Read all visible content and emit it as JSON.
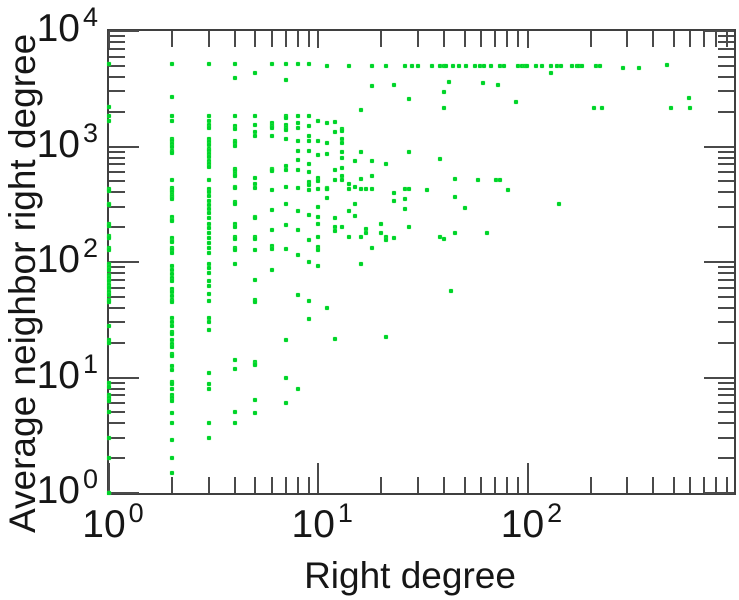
{
  "chart_data": {
    "type": "scatter",
    "title": "",
    "xlabel": "Right degree",
    "ylabel": "Average neighbor right degree",
    "x_scale": "log",
    "y_scale": "log",
    "xlim": [
      1,
      970
    ],
    "ylim": [
      1,
      10000
    ],
    "grid": false,
    "legend": null,
    "marker": {
      "shape": "square",
      "size": 4,
      "color": "#00d42a",
      "halo_color": "#66ff66"
    },
    "axis_color": "#3f3f3f",
    "text_color": "#161616",
    "x_tick_labels": [
      {
        "value": 1,
        "mantissa": "10",
        "exponent": "0"
      },
      {
        "value": 10,
        "mantissa": "10",
        "exponent": "1"
      },
      {
        "value": 100,
        "mantissa": "10",
        "exponent": "2"
      }
    ],
    "y_tick_labels": [
      {
        "value": 1,
        "mantissa": "10",
        "exponent": "0"
      },
      {
        "value": 10,
        "mantissa": "10",
        "exponent": "1"
      },
      {
        "value": 100,
        "mantissa": "10",
        "exponent": "2"
      },
      {
        "value": 1000,
        "mantissa": "10",
        "exponent": "3"
      },
      {
        "value": 10000,
        "mantissa": "10",
        "exponent": "4"
      }
    ],
    "points": [
      [
        1,
        5200
      ],
      [
        1,
        2200
      ],
      [
        1,
        1850
      ],
      [
        1,
        1670
      ],
      [
        1,
        430
      ],
      [
        1,
        415
      ],
      [
        1,
        320
      ],
      [
        1,
        310
      ],
      [
        1,
        215
      ],
      [
        1,
        205
      ],
      [
        1,
        167
      ],
      [
        1,
        160
      ],
      [
        1,
        132
      ],
      [
        1,
        127
      ],
      [
        1,
        97
      ],
      [
        1,
        91
      ],
      [
        1,
        85
      ],
      [
        1,
        77
      ],
      [
        1,
        73
      ],
      [
        1,
        68
      ],
      [
        1,
        63
      ],
      [
        1,
        59
      ],
      [
        1,
        55
      ],
      [
        1,
        52
      ],
      [
        1,
        47
      ],
      [
        1,
        45
      ],
      [
        1,
        28
      ],
      [
        1,
        21
      ],
      [
        1,
        20
      ],
      [
        1,
        8.9
      ],
      [
        1,
        8.3
      ],
      [
        1,
        7.1
      ],
      [
        1,
        6.7
      ],
      [
        1,
        6.2
      ],
      [
        1,
        5
      ],
      [
        1,
        3
      ],
      [
        1,
        2
      ],
      [
        1,
        1
      ],
      [
        2,
        5200
      ],
      [
        2,
        2700
      ],
      [
        2,
        1830
      ],
      [
        2,
        1670
      ],
      [
        2,
        1170
      ],
      [
        2,
        1120
      ],
      [
        2,
        1060
      ],
      [
        2,
        1000
      ],
      [
        2,
        920
      ],
      [
        2,
        870
      ],
      [
        2,
        510
      ],
      [
        2,
        440
      ],
      [
        2,
        420
      ],
      [
        2,
        400
      ],
      [
        2,
        380
      ],
      [
        2,
        365
      ],
      [
        2,
        350
      ],
      [
        2,
        245
      ],
      [
        2,
        230
      ],
      [
        2,
        225
      ],
      [
        2,
        160
      ],
      [
        2,
        152
      ],
      [
        2,
        148
      ],
      [
        2,
        132
      ],
      [
        2,
        127
      ],
      [
        2,
        120
      ],
      [
        2,
        92
      ],
      [
        2,
        85
      ],
      [
        2,
        79
      ],
      [
        2,
        73
      ],
      [
        2,
        68
      ],
      [
        2,
        58
      ],
      [
        2,
        55
      ],
      [
        2,
        51
      ],
      [
        2,
        47
      ],
      [
        2,
        45
      ],
      [
        2,
        33
      ],
      [
        2,
        30
      ],
      [
        2,
        28
      ],
      [
        2,
        25
      ],
      [
        2,
        24
      ],
      [
        2,
        21
      ],
      [
        2,
        19.5
      ],
      [
        2,
        18.5
      ],
      [
        2,
        16
      ],
      [
        2,
        15.2
      ],
      [
        2,
        12.5
      ],
      [
        2,
        11.7
      ],
      [
        2,
        9.2
      ],
      [
        2,
        8.7
      ],
      [
        2,
        7.9
      ],
      [
        2,
        7.1
      ],
      [
        2,
        6.7
      ],
      [
        2,
        6.3
      ],
      [
        2,
        4.9
      ],
      [
        2,
        4
      ],
      [
        2,
        2.9
      ],
      [
        2,
        2
      ],
      [
        2,
        1.5
      ],
      [
        3,
        5200
      ],
      [
        3,
        1850
      ],
      [
        3,
        1670
      ],
      [
        3,
        1530
      ],
      [
        3,
        1460
      ],
      [
        3,
        1170
      ],
      [
        3,
        1090
      ],
      [
        3,
        1030
      ],
      [
        3,
        960
      ],
      [
        3,
        920
      ],
      [
        3,
        860
      ],
      [
        3,
        810
      ],
      [
        3,
        750
      ],
      [
        3,
        710
      ],
      [
        3,
        660
      ],
      [
        3,
        510
      ],
      [
        3,
        430
      ],
      [
        3,
        400
      ],
      [
        3,
        370
      ],
      [
        3,
        340
      ],
      [
        3,
        310
      ],
      [
        3,
        290
      ],
      [
        3,
        265
      ],
      [
        3,
        240
      ],
      [
        3,
        215
      ],
      [
        3,
        197
      ],
      [
        3,
        178
      ],
      [
        3,
        160
      ],
      [
        3,
        145
      ],
      [
        3,
        132
      ],
      [
        3,
        120
      ],
      [
        3,
        97
      ],
      [
        3,
        89
      ],
      [
        3,
        80
      ],
      [
        3,
        69
      ],
      [
        3,
        62
      ],
      [
        3,
        53
      ],
      [
        3,
        46
      ],
      [
        3,
        33
      ],
      [
        3,
        30
      ],
      [
        3,
        26
      ],
      [
        3,
        11
      ],
      [
        3,
        8.7
      ],
      [
        3,
        7.9
      ],
      [
        3,
        4
      ],
      [
        3,
        3
      ],
      [
        4,
        5200
      ],
      [
        4,
        3900
      ],
      [
        4,
        1850
      ],
      [
        4,
        1500
      ],
      [
        4,
        1430
      ],
      [
        4,
        1120
      ],
      [
        4,
        1070
      ],
      [
        4,
        1010
      ],
      [
        4,
        640
      ],
      [
        4,
        615
      ],
      [
        4,
        580
      ],
      [
        4,
        550
      ],
      [
        4,
        445
      ],
      [
        4,
        435
      ],
      [
        4,
        330
      ],
      [
        4,
        315
      ],
      [
        4,
        215
      ],
      [
        4,
        200
      ],
      [
        4,
        165
      ],
      [
        4,
        158
      ],
      [
        4,
        133
      ],
      [
        4,
        126
      ],
      [
        4,
        97
      ],
      [
        4,
        14.3
      ],
      [
        4,
        11.9
      ],
      [
        4,
        5
      ],
      [
        4,
        4
      ],
      [
        5,
        4300
      ],
      [
        5,
        1850
      ],
      [
        5,
        1550
      ],
      [
        5,
        1330
      ],
      [
        5,
        1240
      ],
      [
        5,
        530
      ],
      [
        5,
        470
      ],
      [
        5,
        435
      ],
      [
        5,
        245
      ],
      [
        5,
        240
      ],
      [
        5,
        165
      ],
      [
        5,
        158
      ],
      [
        5,
        126
      ],
      [
        5,
        70
      ],
      [
        5,
        47
      ],
      [
        5,
        45
      ],
      [
        5,
        13.7
      ],
      [
        5,
        13.2
      ],
      [
        5,
        12.8
      ],
      [
        5,
        6.4
      ],
      [
        5,
        4.9
      ],
      [
        6,
        5200
      ],
      [
        6,
        1600
      ],
      [
        6,
        1500
      ],
      [
        6,
        1460
      ],
      [
        6,
        1240
      ],
      [
        6,
        640
      ],
      [
        6,
        625
      ],
      [
        6,
        610
      ],
      [
        6,
        420
      ],
      [
        6,
        280
      ],
      [
        6,
        190
      ],
      [
        6,
        138
      ],
      [
        6,
        130
      ],
      [
        6,
        85
      ],
      [
        7,
        5200
      ],
      [
        7,
        3800
      ],
      [
        7,
        1850
      ],
      [
        7,
        1780
      ],
      [
        7,
        1550
      ],
      [
        7,
        1460
      ],
      [
        7,
        1380
      ],
      [
        7,
        1170
      ],
      [
        7,
        680
      ],
      [
        7,
        620
      ],
      [
        7,
        445
      ],
      [
        7,
        320
      ],
      [
        7,
        210
      ],
      [
        7,
        130
      ],
      [
        7,
        21
      ],
      [
        7,
        10
      ],
      [
        7,
        6
      ],
      [
        8,
        5200
      ],
      [
        8,
        1850
      ],
      [
        8,
        1600
      ],
      [
        8,
        1440
      ],
      [
        8,
        1120
      ],
      [
        8,
        920
      ],
      [
        8,
        760
      ],
      [
        8,
        620
      ],
      [
        8,
        435
      ],
      [
        8,
        275
      ],
      [
        8,
        190
      ],
      [
        8,
        115
      ],
      [
        8,
        52
      ],
      [
        8,
        7.9
      ],
      [
        9,
        5200
      ],
      [
        9,
        1850
      ],
      [
        9,
        1500
      ],
      [
        9,
        1240
      ],
      [
        9,
        1120
      ],
      [
        9,
        920
      ],
      [
        9,
        700
      ],
      [
        9,
        600
      ],
      [
        9,
        490
      ],
      [
        9,
        460
      ],
      [
        9,
        420
      ],
      [
        9,
        255
      ],
      [
        9,
        155
      ],
      [
        9,
        100
      ],
      [
        9,
        46
      ],
      [
        9,
        32
      ],
      [
        10,
        1670
      ],
      [
        10,
        1120
      ],
      [
        10,
        840
      ],
      [
        10,
        535
      ],
      [
        10,
        505
      ],
      [
        10,
        430
      ],
      [
        10,
        300
      ],
      [
        10,
        245
      ],
      [
        10,
        215
      ],
      [
        10,
        165
      ],
      [
        10,
        135
      ],
      [
        10,
        126
      ],
      [
        10,
        92
      ],
      [
        11,
        5000
      ],
      [
        11,
        1600
      ],
      [
        11,
        1080
      ],
      [
        11,
        855
      ],
      [
        11,
        440
      ],
      [
        11,
        430
      ],
      [
        11,
        425
      ],
      [
        11,
        360
      ],
      [
        11,
        40
      ],
      [
        12,
        1620
      ],
      [
        12,
        1330
      ],
      [
        12,
        620
      ],
      [
        12,
        510
      ],
      [
        12,
        240
      ],
      [
        12,
        200
      ],
      [
        12,
        186
      ],
      [
        12,
        21.7
      ],
      [
        13,
        1430
      ],
      [
        13,
        1350
      ],
      [
        13,
        1170
      ],
      [
        13,
        1080
      ],
      [
        13,
        900
      ],
      [
        13,
        790
      ],
      [
        13,
        645
      ],
      [
        13,
        560
      ],
      [
        13,
        510
      ],
      [
        13,
        200
      ],
      [
        14,
        5000
      ],
      [
        14,
        475
      ],
      [
        14,
        430
      ],
      [
        14,
        275
      ],
      [
        14,
        165
      ],
      [
        15,
        755
      ],
      [
        15,
        445
      ],
      [
        15,
        315
      ],
      [
        15,
        250
      ],
      [
        16,
        2050
      ],
      [
        16,
        900
      ],
      [
        16,
        520
      ],
      [
        16,
        430
      ],
      [
        16,
        165
      ],
      [
        16,
        97
      ],
      [
        17,
        430
      ],
      [
        17,
        195
      ],
      [
        17,
        180
      ],
      [
        18,
        5000
      ],
      [
        18,
        3350
      ],
      [
        18,
        755
      ],
      [
        18,
        555
      ],
      [
        18,
        430
      ],
      [
        18,
        133
      ],
      [
        20,
        215
      ],
      [
        20,
        180
      ],
      [
        21,
        5000
      ],
      [
        21,
        700
      ],
      [
        21,
        165
      ],
      [
        21,
        155
      ],
      [
        21,
        22.3
      ],
      [
        23,
        3400
      ],
      [
        23,
        395
      ],
      [
        23,
        340
      ],
      [
        23,
        162
      ],
      [
        26,
        5000
      ],
      [
        26,
        430
      ],
      [
        26,
        350
      ],
      [
        26,
        290
      ],
      [
        27,
        2600
      ],
      [
        27,
        900
      ],
      [
        27,
        430
      ],
      [
        27,
        200
      ],
      [
        28,
        5000
      ],
      [
        30,
        5000
      ],
      [
        33,
        420
      ],
      [
        35,
        5000
      ],
      [
        38,
        5000
      ],
      [
        38,
        780
      ],
      [
        38,
        165
      ],
      [
        40,
        5000
      ],
      [
        40,
        2950
      ],
      [
        40,
        2150
      ],
      [
        40,
        158
      ],
      [
        41,
        5000
      ],
      [
        42,
        3650
      ],
      [
        43,
        56
      ],
      [
        44,
        5000
      ],
      [
        45,
        520
      ],
      [
        45,
        365
      ],
      [
        45,
        180
      ],
      [
        47,
        5000
      ],
      [
        50,
        295
      ],
      [
        51,
        5000
      ],
      [
        56,
        5000
      ],
      [
        58,
        510
      ],
      [
        59,
        5000
      ],
      [
        61,
        3550
      ],
      [
        62,
        5000
      ],
      [
        64,
        180
      ],
      [
        67,
        5000
      ],
      [
        71,
        510
      ],
      [
        72,
        3400
      ],
      [
        74,
        5000
      ],
      [
        74,
        515
      ],
      [
        77,
        5000
      ],
      [
        81,
        420
      ],
      [
        88,
        2450
      ],
      [
        90,
        5000
      ],
      [
        94,
        5000
      ],
      [
        97,
        5000
      ],
      [
        99,
        5000
      ],
      [
        110,
        5000
      ],
      [
        117,
        5000
      ],
      [
        130,
        5000
      ],
      [
        130,
        4300
      ],
      [
        138,
        5000
      ],
      [
        142,
        316
      ],
      [
        144,
        5000
      ],
      [
        164,
        5000
      ],
      [
        172,
        5000
      ],
      [
        177,
        5000
      ],
      [
        183,
        5000
      ],
      [
        207,
        2170
      ],
      [
        213,
        5000
      ],
      [
        223,
        5000
      ],
      [
        228,
        2170
      ],
      [
        287,
        4800
      ],
      [
        340,
        4800
      ],
      [
        465,
        5100
      ],
      [
        485,
        2170
      ],
      [
        590,
        2650
      ],
      [
        598,
        2170
      ]
    ]
  }
}
